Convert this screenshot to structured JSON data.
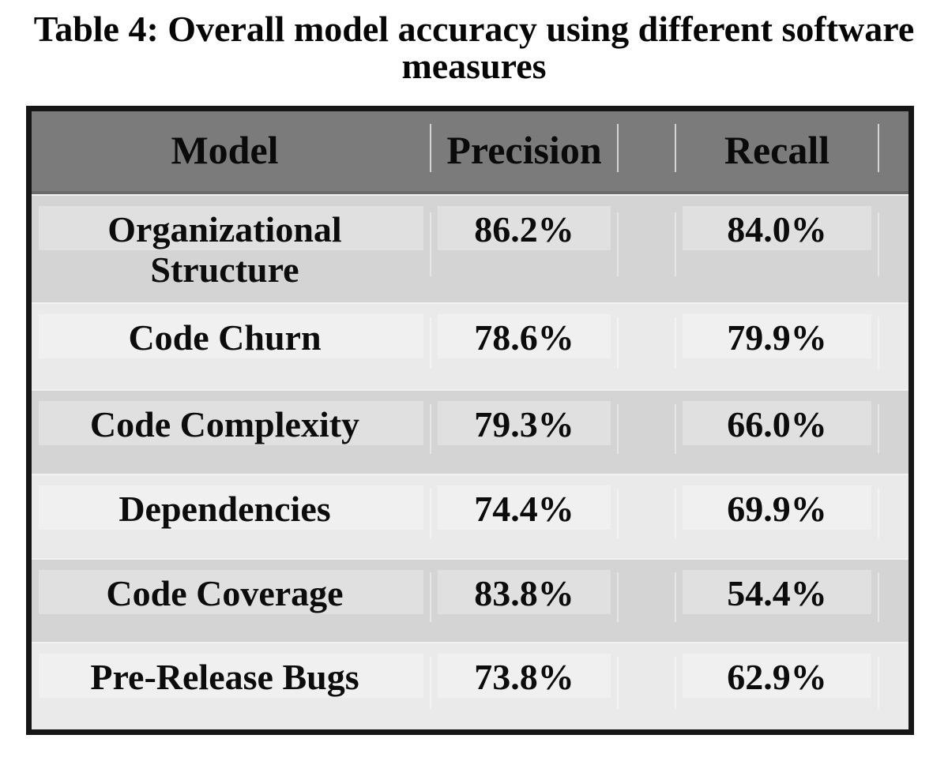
{
  "caption": {
    "text": "Table 4: Overall model accuracy using different software measures",
    "line1": "Table 4: Overall model accuracy using different software",
    "line2": "measures"
  },
  "table": {
    "headers": [
      "Model",
      "Precision",
      "Recall"
    ],
    "rows": [
      {
        "model": "Organizational Structure",
        "precision": "86.2%",
        "recall": "84.0%"
      },
      {
        "model": "Code Churn",
        "precision": "78.6%",
        "recall": "79.9%"
      },
      {
        "model": "Code Complexity",
        "precision": "79.3%",
        "recall": "66.0%"
      },
      {
        "model": "Dependencies",
        "precision": "74.4%",
        "recall": "69.9%"
      },
      {
        "model": "Code Coverage",
        "precision": "83.8%",
        "recall": "54.4%"
      },
      {
        "model": "Pre-Release Bugs",
        "precision": "73.8%",
        "recall": "62.9%"
      }
    ],
    "colors": {
      "header_bg": "#7b7b7b",
      "row_dark_bg": "#d4d4d4",
      "row_light_bg": "#eaeaea",
      "outer_border": "#161616",
      "text": "#0c0c0c"
    }
  },
  "chart_data": {
    "type": "table",
    "title": "Table 4: Overall model accuracy using different software measures",
    "columns": [
      "Model",
      "Precision",
      "Recall"
    ],
    "rows": [
      [
        "Organizational Structure",
        "86.2%",
        "84.0%"
      ],
      [
        "Code Churn",
        "78.6%",
        "79.9%"
      ],
      [
        "Code Complexity",
        "79.3%",
        "66.0%"
      ],
      [
        "Dependencies",
        "74.4%",
        "69.9%"
      ],
      [
        "Code Coverage",
        "83.8%",
        "54.4%"
      ],
      [
        "Pre-Release Bugs",
        "73.8%",
        "62.9%"
      ]
    ]
  }
}
